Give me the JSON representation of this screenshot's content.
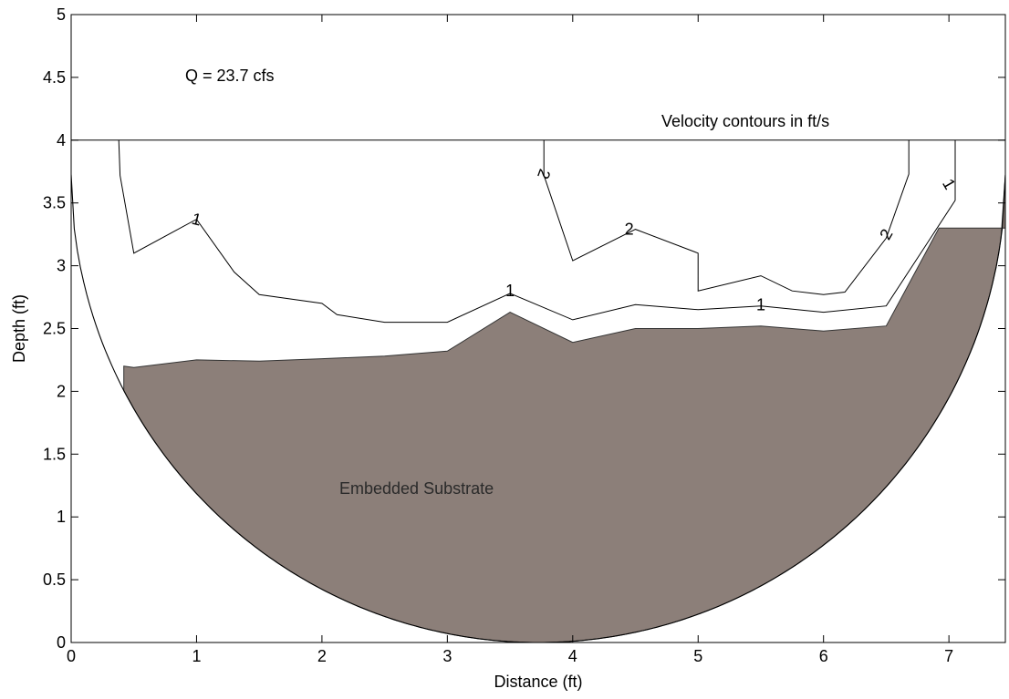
{
  "chart_data": {
    "type": "line",
    "xlabel": "Distance (ft)",
    "ylabel": "Depth (ft)",
    "xlim": [
      0,
      7.45
    ],
    "ylim": [
      0,
      5
    ],
    "xticks": [
      0,
      1,
      2,
      3,
      4,
      5,
      6,
      7
    ],
    "yticks": [
      0,
      0.5,
      1,
      1.5,
      2,
      2.5,
      3,
      3.5,
      4,
      4.5,
      5
    ],
    "grid": false,
    "annotations": {
      "discharge": "Q = 23.7 cfs",
      "contour_note": "Velocity contours in ft/s",
      "substrate_label": "Embedded Substrate"
    },
    "water_surface": {
      "depth": 4.0,
      "x_range": [
        0,
        7.45
      ]
    },
    "culvert_circle": {
      "center": [
        3.725,
        3.725
      ],
      "radius": 3.725
    },
    "substrate": {
      "fill_color": "#8c7f79",
      "surface": [
        [
          0.42,
          2.2
        ],
        [
          0.5,
          2.19
        ],
        [
          1.0,
          2.25
        ],
        [
          1.5,
          2.24
        ],
        [
          2.0,
          2.26
        ],
        [
          2.5,
          2.28
        ],
        [
          3.0,
          2.32
        ],
        [
          3.5,
          2.63
        ],
        [
          4.0,
          2.39
        ],
        [
          4.5,
          2.5
        ],
        [
          5.0,
          2.5
        ],
        [
          5.5,
          2.52
        ],
        [
          6.0,
          2.48
        ],
        [
          6.5,
          2.52
        ],
        [
          6.92,
          3.3
        ],
        [
          7.45,
          3.3
        ]
      ]
    },
    "series": [
      {
        "name": "1",
        "points": [
          [
            0.38,
            4.0
          ],
          [
            0.39,
            3.72
          ],
          [
            0.5,
            3.1
          ],
          [
            1.0,
            3.37
          ],
          [
            1.3,
            2.95
          ],
          [
            1.5,
            2.77
          ],
          [
            2.0,
            2.7
          ],
          [
            2.12,
            2.61
          ],
          [
            2.5,
            2.55
          ],
          [
            3.0,
            2.55
          ],
          [
            3.5,
            2.78
          ],
          [
            4.0,
            2.57
          ],
          [
            4.5,
            2.69
          ],
          [
            5.0,
            2.65
          ],
          [
            5.5,
            2.68
          ],
          [
            6.0,
            2.63
          ],
          [
            6.5,
            2.68
          ],
          [
            7.05,
            3.52
          ],
          [
            7.05,
            4.0
          ]
        ],
        "labels": [
          [
            1.0,
            3.37,
            14
          ],
          [
            3.5,
            2.8,
            0
          ],
          [
            5.5,
            2.69,
            0
          ],
          [
            7.0,
            3.65,
            60
          ]
        ]
      },
      {
        "name": "2",
        "points": [
          [
            3.77,
            4.0
          ],
          [
            3.77,
            3.72
          ],
          [
            4.0,
            3.04
          ],
          [
            4.5,
            3.29
          ],
          [
            5.0,
            3.1
          ],
          [
            5.0,
            2.8
          ],
          [
            5.5,
            2.92
          ],
          [
            5.75,
            2.8
          ],
          [
            6.0,
            2.77
          ],
          [
            6.17,
            2.79
          ],
          [
            6.5,
            3.22
          ],
          [
            6.68,
            3.73
          ],
          [
            6.68,
            4.0
          ]
        ],
        "labels": [
          [
            3.77,
            3.73,
            110
          ],
          [
            4.45,
            3.29,
            0
          ],
          [
            6.5,
            3.25,
            -60
          ]
        ]
      }
    ]
  }
}
